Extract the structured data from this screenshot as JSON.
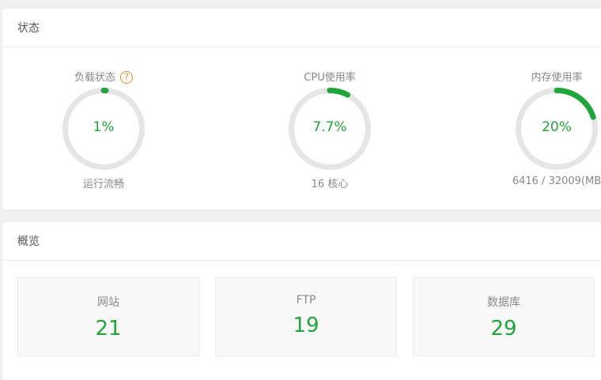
{
  "status": {
    "title": "状态",
    "gauges": [
      {
        "title": "负载状态",
        "help_icon": "?",
        "value_text": "1%",
        "percent": 1,
        "subtitle": "运行流畅"
      },
      {
        "title": "CPU使用率",
        "value_text": "7.7%",
        "percent": 7.7,
        "subtitle": "16 核心"
      },
      {
        "title": "内存使用率",
        "value_text": "20%",
        "percent": 20,
        "subtitle": "6416 / 32009(MB"
      }
    ],
    "colors": {
      "accent": "#20a53a",
      "track": "#e5e5e5",
      "help": "#f0861f"
    }
  },
  "overview": {
    "title": "概览",
    "items": [
      {
        "label": "网站",
        "value": "21"
      },
      {
        "label": "FTP",
        "value": "19"
      },
      {
        "label": "数据库",
        "value": "29"
      }
    ]
  }
}
